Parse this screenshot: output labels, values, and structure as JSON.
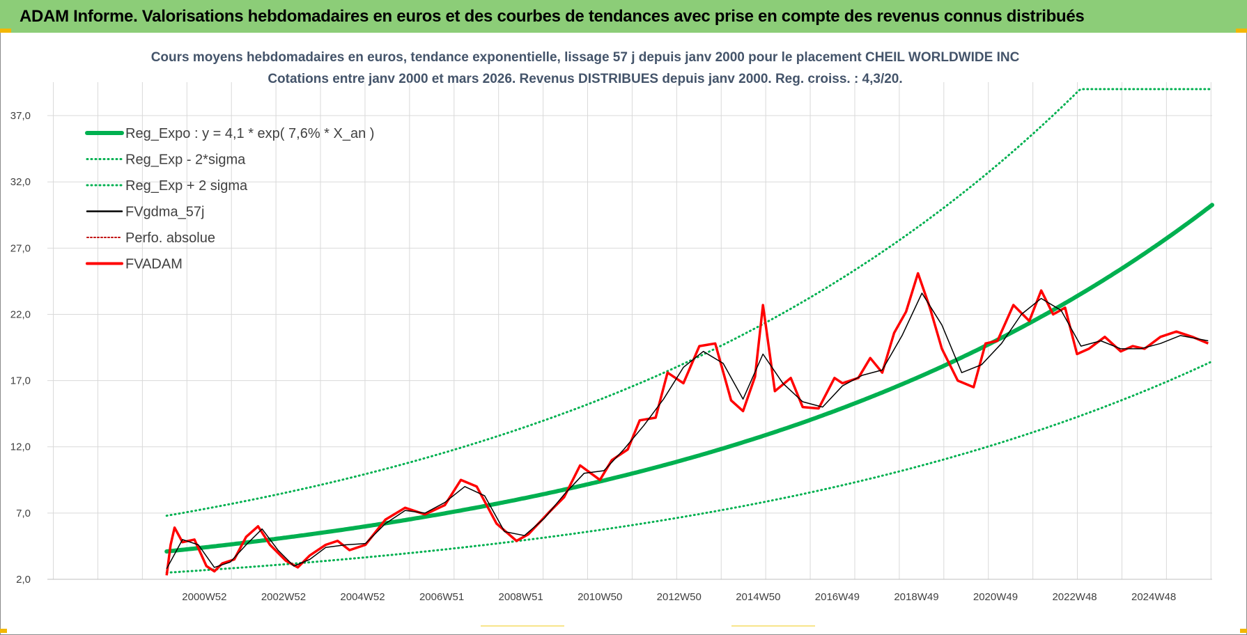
{
  "banner": {
    "title": "ADAM Informe. Valorisations hebdomadaires en euros et des courbes de tendances avec prise en compte des revenus connus distribués"
  },
  "colors": {
    "banner_bg": "#8ccd78",
    "trend_green": "#00b050",
    "fvgdma_black": "#000000",
    "fvadam_red": "#ff0000",
    "accent_yellow": "#f2b705"
  },
  "chart_data": {
    "type": "line",
    "title": "Cours moyens hebdomadaires en euros, tendance exponentielle, lissage 57 j depuis janv 2000 pour le placement CHEIL WORLDWIDE INC",
    "subtitle": "Cotations entre janv 2000 et mars 2026. Revenus DISTRIBUES depuis janv 2000. Reg. croiss. : 4,3/20.",
    "xlabel": "",
    "ylabel": "",
    "ylim": [
      2.0,
      39.0
    ],
    "yticks": [
      "2,0",
      "7,0",
      "12,0",
      "17,0",
      "22,0",
      "27,0",
      "32,0",
      "37,0"
    ],
    "xticks": [
      "2000W52",
      "2002W52",
      "2004W52",
      "2006W51",
      "2008W51",
      "2010W50",
      "2012W50",
      "2014W50",
      "2016W49",
      "2018W49",
      "2020W49",
      "2022W48",
      "2024W48"
    ],
    "x_range_years": [
      1997.0,
      2026.3
    ],
    "grid": true,
    "legend_position": "top-left",
    "legend": [
      {
        "label": "Reg_Expo : y = 4,1 * exp( 7,6% *  X_an )",
        "color": "#00b050",
        "style": "solid-thick"
      },
      {
        "label": "Reg_Exp - 2*sigma",
        "color": "#00b050",
        "style": "dotted"
      },
      {
        "label": "Reg_Exp + 2 sigma",
        "color": "#00b050",
        "style": "dotted"
      },
      {
        "label": "FVgdma_57j",
        "color": "#000000",
        "style": "solid-thin"
      },
      {
        "label": "Perfo. absolue",
        "color": "#c00000",
        "style": "dotted"
      },
      {
        "label": "FVADAM",
        "color": "#ff0000",
        "style": "solid-thick"
      }
    ],
    "series": [
      {
        "name": "Reg_Expo : y = 4,1 * exp( 7,6% *  X_an )",
        "x": [
          2000.0,
          2026.3
        ],
        "model": "exp",
        "a": 4.1,
        "r": 0.076,
        "x0": 2000.0
      },
      {
        "name": "Reg_Exp - 2*sigma",
        "x": [
          2000.0,
          2026.3
        ],
        "model": "exp",
        "a": 2.5,
        "r": 0.076,
        "x0": 2000.0
      },
      {
        "name": "Reg_Exp + 2 sigma",
        "x": [
          2000.0,
          2026.3
        ],
        "model": "exp",
        "a": 6.8,
        "r": 0.076,
        "x0": 2000.0,
        "cap": 39.0
      },
      {
        "name": "FVADAM",
        "x": [
          2000.0,
          2000.1,
          2000.2,
          2000.4,
          2000.7,
          2001.0,
          2001.2,
          2001.4,
          2001.7,
          2002.0,
          2002.3,
          2002.6,
          2003.0,
          2003.3,
          2003.6,
          2004.0,
          2004.3,
          2004.6,
          2005.0,
          2005.5,
          2006.0,
          2006.5,
          2007.0,
          2007.4,
          2007.8,
          2008.3,
          2008.8,
          2009.1,
          2009.6,
          2010.0,
          2010.4,
          2010.9,
          2011.2,
          2011.6,
          2011.9,
          2012.3,
          2012.6,
          2013.0,
          2013.4,
          2013.8,
          2014.2,
          2014.5,
          2014.8,
          2015.0,
          2015.3,
          2015.7,
          2016.0,
          2016.4,
          2016.8,
          2017.0,
          2017.4,
          2017.7,
          2018.0,
          2018.3,
          2018.6,
          2018.9,
          2019.2,
          2019.5,
          2019.9,
          2020.3,
          2020.6,
          2020.9,
          2021.3,
          2021.7,
          2022.0,
          2022.3,
          2022.6,
          2022.9,
          2023.2,
          2023.6,
          2024.0,
          2024.3,
          2024.6,
          2025.0,
          2025.4,
          2025.8,
          2026.2
        ],
        "y": [
          2.3,
          4.6,
          5.9,
          4.8,
          5.0,
          3.0,
          2.6,
          3.2,
          3.5,
          5.2,
          6.0,
          4.6,
          3.4,
          2.9,
          3.8,
          4.6,
          4.9,
          4.2,
          4.6,
          6.5,
          7.4,
          6.9,
          7.6,
          9.5,
          9.0,
          6.2,
          4.9,
          5.4,
          7.0,
          8.2,
          10.6,
          9.5,
          11.0,
          11.8,
          14.0,
          14.2,
          17.6,
          16.8,
          19.6,
          19.8,
          15.5,
          14.7,
          17.3,
          22.7,
          16.2,
          17.2,
          15.0,
          14.9,
          17.2,
          16.8,
          17.2,
          18.7,
          17.6,
          20.6,
          22.2,
          25.1,
          22.5,
          19.4,
          17.0,
          16.5,
          19.8,
          20.0,
          22.7,
          21.5,
          23.8,
          22.0,
          22.5,
          19.0,
          19.4,
          20.3,
          19.2,
          19.6,
          19.4,
          20.3,
          20.7,
          20.3,
          19.8
        ]
      },
      {
        "name": "FVgdma_57j",
        "x": [
          2000.0,
          2000.4,
          2000.8,
          2001.2,
          2001.6,
          2002.0,
          2002.4,
          2002.8,
          2003.2,
          2003.6,
          2004.0,
          2004.5,
          2005.0,
          2005.5,
          2006.0,
          2006.5,
          2007.0,
          2007.5,
          2008.0,
          2008.5,
          2009.0,
          2009.5,
          2010.0,
          2010.5,
          2011.0,
          2011.5,
          2012.0,
          2012.5,
          2013.0,
          2013.5,
          2014.0,
          2014.5,
          2015.0,
          2015.5,
          2016.0,
          2016.5,
          2017.0,
          2017.5,
          2018.0,
          2018.5,
          2019.0,
          2019.5,
          2020.0,
          2020.5,
          2021.0,
          2021.5,
          2022.0,
          2022.5,
          2023.0,
          2023.5,
          2024.0,
          2024.5,
          2025.0,
          2025.5,
          2026.2
        ],
        "y": [
          2.8,
          5.0,
          4.6,
          2.9,
          3.3,
          4.6,
          5.8,
          4.2,
          3.0,
          3.5,
          4.4,
          4.6,
          4.7,
          6.2,
          7.2,
          7.0,
          7.8,
          9.0,
          8.3,
          5.6,
          5.3,
          6.6,
          8.4,
          10.0,
          10.2,
          11.8,
          13.6,
          15.6,
          18.0,
          19.2,
          18.3,
          15.6,
          19.0,
          16.8,
          15.4,
          15.0,
          16.6,
          17.4,
          17.8,
          20.4,
          23.6,
          21.2,
          17.6,
          18.2,
          19.8,
          22.0,
          23.2,
          22.3,
          19.6,
          20.0,
          19.4,
          19.4,
          19.8,
          20.4,
          20.0
        ]
      }
    ]
  }
}
